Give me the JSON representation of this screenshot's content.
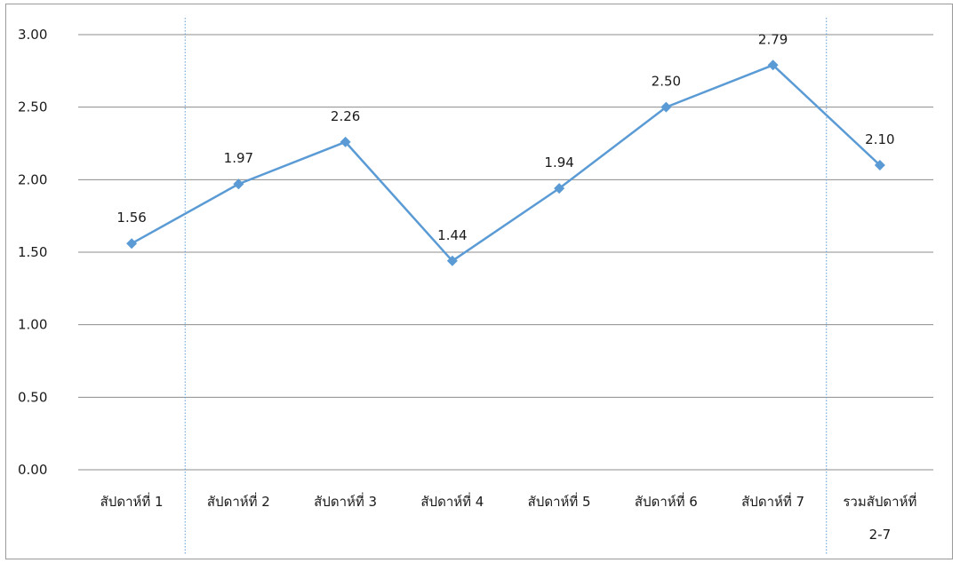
{
  "chart_data": {
    "type": "line",
    "categories": [
      "สัปดาห์ที่ 1",
      "สัปดาห์ที่ 2",
      "สัปดาห์ที่ 3",
      "สัปดาห์ที่ 4",
      "สัปดาห์ที่ 5",
      "สัปดาห์ที่ 6",
      "สัปดาห์ที่ 7",
      "รวมสัปดาห์ที่ 2-7"
    ],
    "category_lines": [
      [
        "สัปดาห์ที่ 1"
      ],
      [
        "สัปดาห์ที่ 2"
      ],
      [
        "สัปดาห์ที่ 3"
      ],
      [
        "สัปดาห์ที่ 4"
      ],
      [
        "สัปดาห์ที่ 5"
      ],
      [
        "สัปดาห์ที่ 6"
      ],
      [
        "สัปดาห์ที่ 7"
      ],
      [
        "รวมสัปดาห์ที่",
        "2-7"
      ]
    ],
    "series": [
      {
        "values": [
          1.56,
          1.97,
          2.26,
          1.44,
          1.94,
          2.5,
          2.79,
          2.1
        ]
      }
    ],
    "data_labels": [
      "1.56",
      "1.97",
      "2.26",
      "1.44",
      "1.94",
      "2.50",
      "2.79",
      "2.10"
    ],
    "ylim": [
      0,
      3
    ],
    "yticks": [
      "0.00",
      "0.50",
      "1.00",
      "1.50",
      "2.00",
      "2.50",
      "3.00"
    ],
    "grid": "horizontal",
    "legend": "none",
    "line_color": "#5b9bd5",
    "grid_color": "#8c8c8c",
    "separator_color": "#5b9bd5",
    "separators_after_index": [
      0,
      6
    ]
  }
}
